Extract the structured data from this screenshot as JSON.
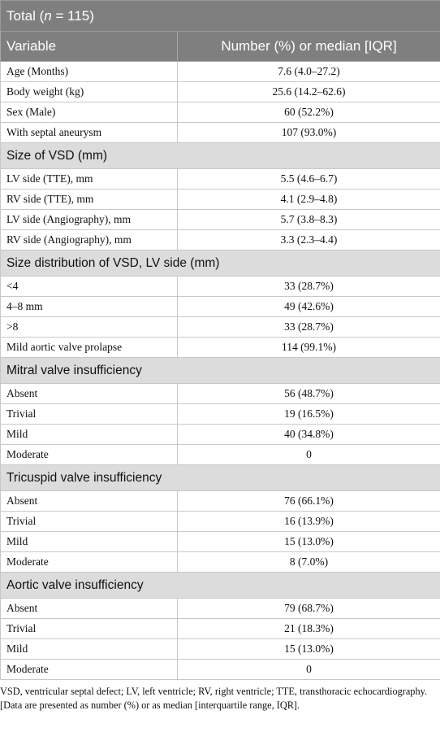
{
  "table": {
    "title": {
      "prefix": "Total (",
      "italic": "n",
      "suffix": " = 115)"
    },
    "header": [
      "Variable",
      "Number (%) or median [IQR]"
    ],
    "groups": [
      {
        "rows": [
          [
            "Age (Months)",
            "7.6 (4.0–27.2)"
          ],
          [
            "Body weight (kg)",
            "25.6 (14.2–62.6)"
          ],
          [
            "Sex (Male)",
            "60 (52.2%)"
          ],
          [
            "With septal aneurysm",
            "107 (93.0%)"
          ]
        ]
      },
      {
        "title": "Size of VSD (mm)",
        "rows": [
          [
            "LV side (TTE), mm",
            "5.5 (4.6–6.7)"
          ],
          [
            "RV side (TTE), mm",
            "4.1 (2.9–4.8)"
          ],
          [
            "LV side (Angiography), mm",
            "5.7 (3.8–8.3)"
          ],
          [
            "RV side (Angiography), mm",
            "3.3 (2.3–4.4)"
          ]
        ]
      },
      {
        "title": "Size distribution of VSD, LV side (mm)",
        "rows": [
          [
            "<4",
            "33 (28.7%)"
          ],
          [
            "4–8 mm",
            "49 (42.6%)"
          ],
          [
            ">8",
            "33 (28.7%)"
          ],
          [
            "Mild aortic valve prolapse",
            "114 (99.1%)"
          ]
        ]
      },
      {
        "title": "Mitral valve insufficiency",
        "rows": [
          [
            "Absent",
            "56 (48.7%)"
          ],
          [
            "Trivial",
            "19 (16.5%)"
          ],
          [
            "Mild",
            "40 (34.8%)"
          ],
          [
            "Moderate",
            "0"
          ]
        ]
      },
      {
        "title": "Tricuspid valve insufficiency",
        "rows": [
          [
            "Absent",
            "76 (66.1%)"
          ],
          [
            "Trivial",
            "16 (13.9%)"
          ],
          [
            "Mild",
            "15 (13.0%)"
          ],
          [
            "Moderate",
            "8 (7.0%)"
          ]
        ]
      },
      {
        "title": "Aortic valve insufficiency",
        "rows": [
          [
            "Absent",
            "79 (68.7%)"
          ],
          [
            "Trivial",
            "21 (18.3%)"
          ],
          [
            "Mild",
            "15 (13.0%)"
          ],
          [
            "Moderate",
            "0"
          ]
        ]
      }
    ]
  },
  "footnotes": [
    "VSD, ventricular septal defect; LV, left ventricle; RV, right ventricle; TTE, transthoracic echocardiography.",
    "[Data are presented as number (%) or as median [interquartile range, IQR]."
  ]
}
